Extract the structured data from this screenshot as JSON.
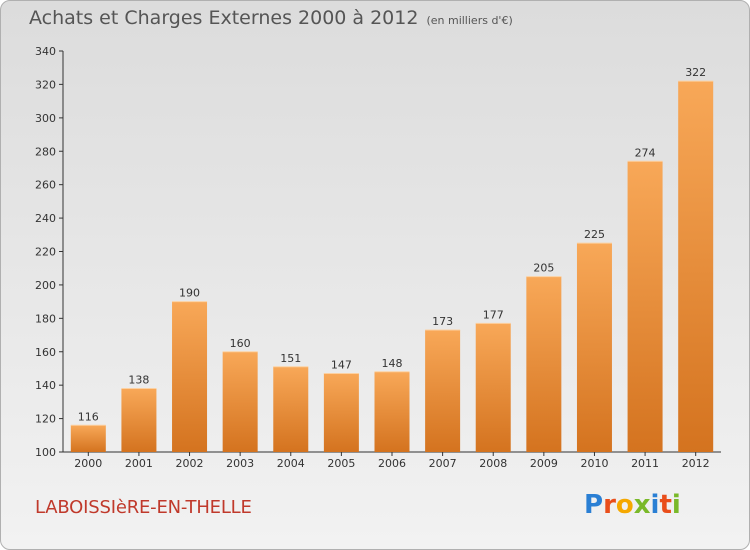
{
  "header": {
    "title": "Achats et Charges Externes 2000 à 2012",
    "subtitle": "(en milliers d'€)"
  },
  "footer": {
    "commune": "LABOISSIèRE-EN-THELLE",
    "logo_letters": [
      "P",
      "r",
      "o",
      "x",
      "i",
      "t",
      "i"
    ]
  },
  "colors": {
    "bar_light": "#f8a858",
    "bar_dark": "#d4731f",
    "commune": "#c0392b"
  },
  "chart_data": {
    "type": "bar",
    "title": "Achats et Charges Externes 2000 à 2012",
    "categories": [
      "2000",
      "2001",
      "2002",
      "2003",
      "2004",
      "2005",
      "2006",
      "2007",
      "2008",
      "2009",
      "2010",
      "2011",
      "2012"
    ],
    "values": [
      116,
      138,
      190,
      160,
      151,
      147,
      148,
      173,
      177,
      205,
      225,
      274,
      322
    ],
    "ylim": [
      100,
      340
    ],
    "yticks": [
      100,
      120,
      140,
      160,
      180,
      200,
      220,
      240,
      260,
      280,
      300,
      320,
      340
    ],
    "grid": false,
    "data_labels": true
  }
}
